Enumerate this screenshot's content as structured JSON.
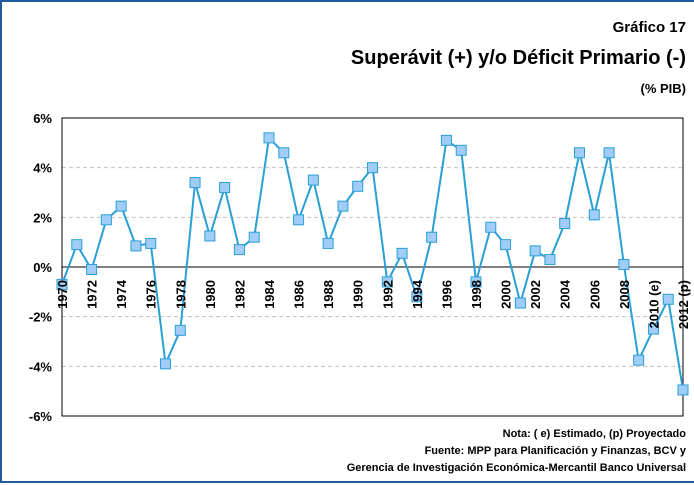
{
  "chart_data": {
    "type": "line",
    "title": "Superávit (+) y/o Déficit Primario (-)",
    "supertitle": "Gráfico 17",
    "subtitle": "(% PIB)",
    "notes": [
      "Nota: ( e) Estimado, (p) Proyectado",
      "Fuente: MPP para Planificación y Finanzas, BCV y",
      "Gerencia de Investigación Económica-Mercantil Banco Universal"
    ],
    "categories": [
      "1970",
      null,
      "1972",
      null,
      "1974",
      null,
      "1976",
      null,
      "1978",
      null,
      "1980",
      null,
      "1982",
      null,
      "1984",
      null,
      "1986",
      null,
      "1988",
      null,
      "1990",
      null,
      "1992",
      null,
      "1994",
      null,
      "1996",
      null,
      "1998",
      null,
      "2000",
      null,
      "2002",
      null,
      "2004",
      null,
      "2006",
      null,
      "2008",
      null,
      "2010 (e)",
      null,
      "2012 (p)"
    ],
    "series": [
      {
        "name": "Superávit/Déficit primario",
        "color": "#2a9fd6",
        "marker_color": "#9fcdf7",
        "values": [
          -0.7,
          0.9,
          -0.1,
          1.9,
          2.45,
          0.85,
          0.95,
          -3.9,
          -2.55,
          3.4,
          1.25,
          3.2,
          0.7,
          1.2,
          5.2,
          4.6,
          1.9,
          3.5,
          0.95,
          2.45,
          3.25,
          4.0,
          -0.6,
          0.55,
          -1.2,
          1.2,
          5.1,
          4.7,
          -0.6,
          1.6,
          0.9,
          -1.45,
          0.65,
          0.3,
          1.75,
          4.6,
          2.1,
          4.6,
          0.1,
          -3.75,
          -2.5,
          -1.3,
          -4.95
        ]
      }
    ],
    "ylim": [
      -6,
      6
    ],
    "yticks": [
      {
        "value": -6,
        "label": "-6%"
      },
      {
        "value": -4,
        "label": "-4%"
      },
      {
        "value": -2,
        "label": "-2%"
      },
      {
        "value": 0,
        "label": "0%"
      },
      {
        "value": 2,
        "label": "2%"
      },
      {
        "value": 4,
        "label": "4%"
      },
      {
        "value": 6,
        "label": "6%"
      }
    ],
    "grid": true
  }
}
